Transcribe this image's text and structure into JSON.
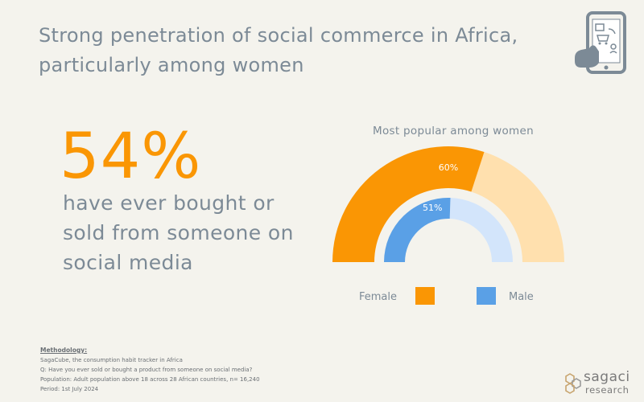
{
  "title": "Strong penetration of social commerce in Africa, particularly among women",
  "headline": {
    "value": "54%",
    "text": "have ever bought or sold from someone on social media"
  },
  "chart_data": {
    "type": "pie",
    "title": "Most popular among women",
    "series": [
      {
        "name": "Female",
        "value": 60,
        "label": "60%",
        "color": "#fa9604",
        "remainder_color": "#ffe0ae"
      },
      {
        "name": "Male",
        "value": 51,
        "label": "51%",
        "color": "#5aa0e6",
        "remainder_color": "#d3e5fb"
      }
    ],
    "legend": [
      "Female",
      "Male"
    ],
    "legend_placement": "bottom"
  },
  "methodology": {
    "heading": "Methodology:",
    "lines": [
      "SagaCube, the consumption habit tracker in Africa",
      "Q: Have you ever sold or bought a product from someone on social media?",
      "Population: Adult population above 18 across 28 African countries, n= 16,240",
      "Period: 1st July 2024"
    ]
  },
  "logo": {
    "line1": "sagaci",
    "line2": "research"
  },
  "icons": {
    "header": "phone-shopping-icon",
    "logo": "hexagon-logo-icon"
  }
}
